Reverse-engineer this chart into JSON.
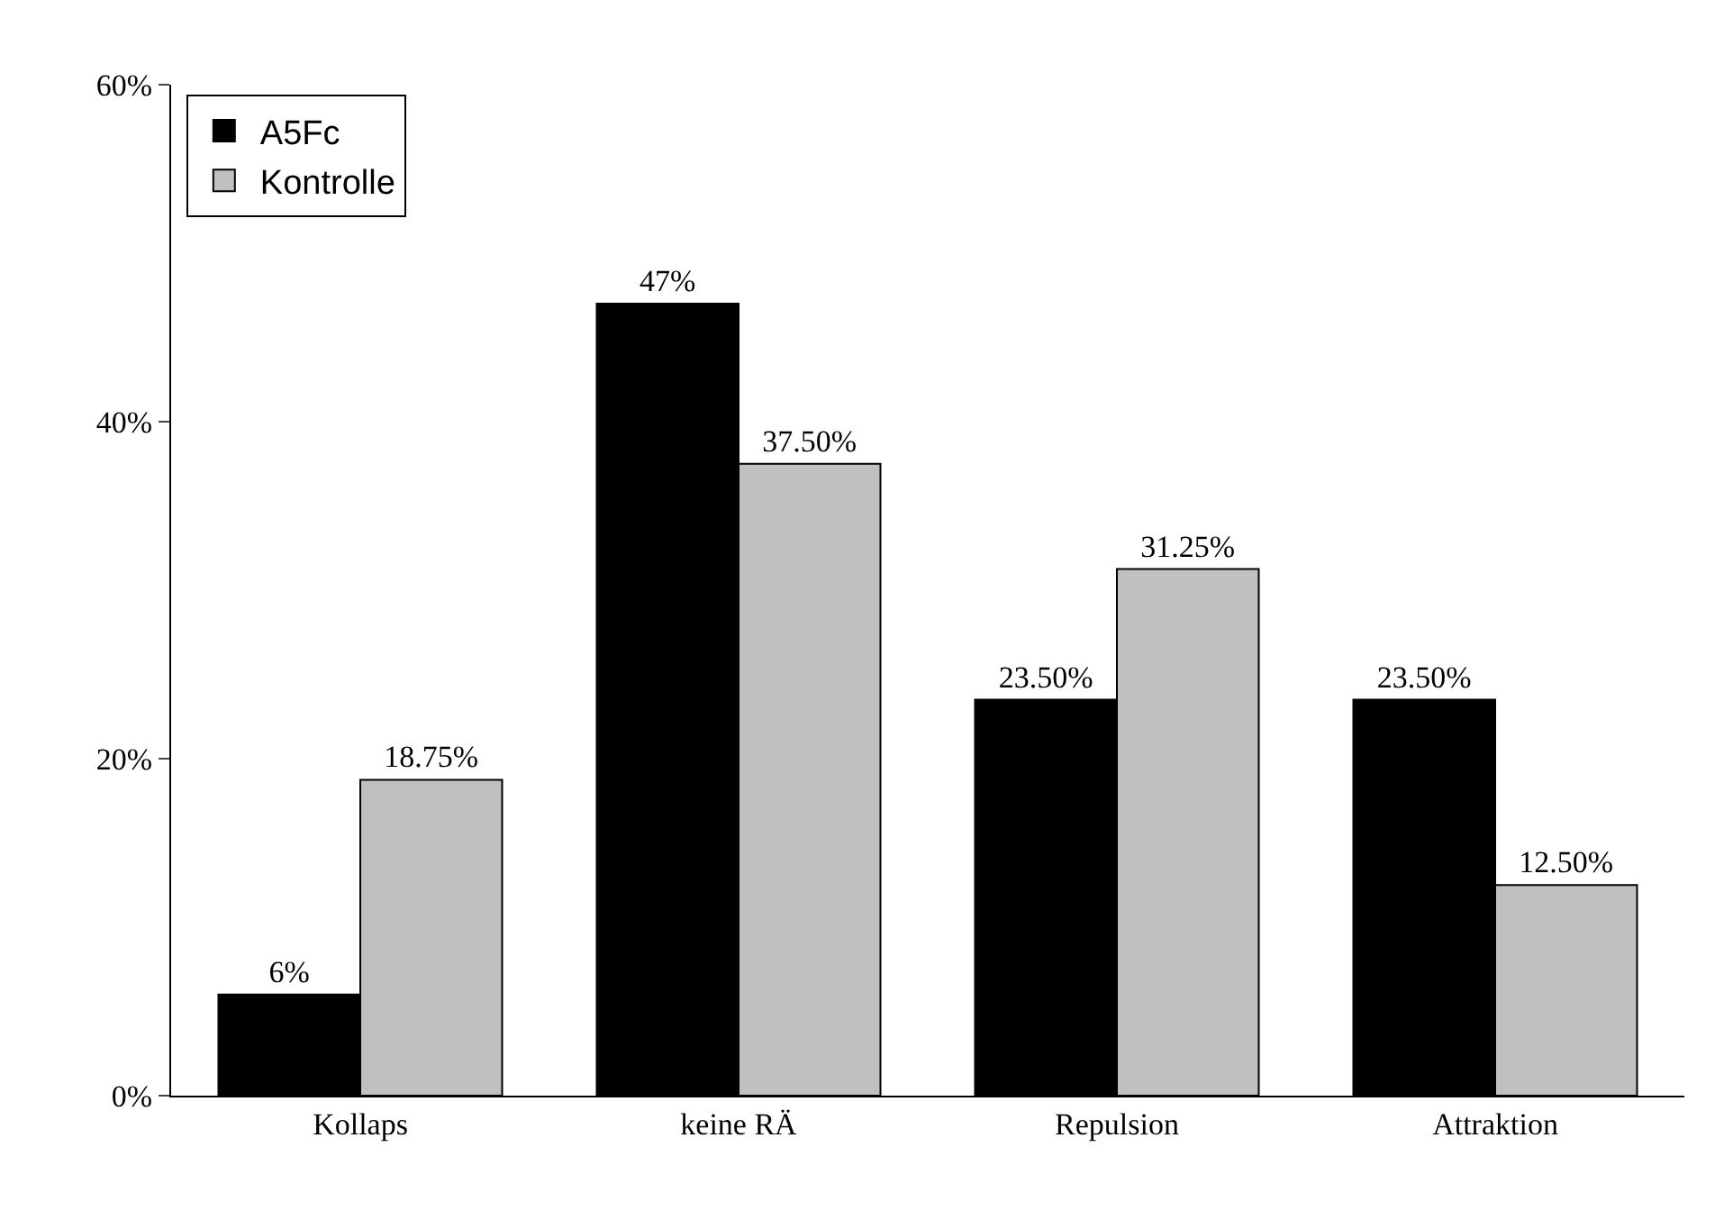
{
  "chart_data": {
    "type": "bar",
    "categories": [
      "Kollaps",
      "keine RÄ",
      "Repulsion",
      "Attraktion"
    ],
    "series": [
      {
        "name": "A5Fc",
        "color": "#000000",
        "values": [
          6,
          47,
          23.5,
          23.5
        ],
        "value_labels": [
          "6%",
          "47%",
          "23.50%",
          "23.50%"
        ]
      },
      {
        "name": "Kontrolle",
        "color": "#c0c0c0",
        "values": [
          18.75,
          37.5,
          31.25,
          12.5
        ],
        "value_labels": [
          "18.75%",
          "37.50%",
          "31.25%",
          "12.50%"
        ]
      }
    ],
    "ylim": [
      0,
      60
    ],
    "yticks": [
      {
        "value": 0,
        "label": "0%"
      },
      {
        "value": 20,
        "label": "20%"
      },
      {
        "value": 40,
        "label": "40%"
      },
      {
        "value": 60,
        "label": "60%"
      }
    ],
    "legend": "top left"
  }
}
